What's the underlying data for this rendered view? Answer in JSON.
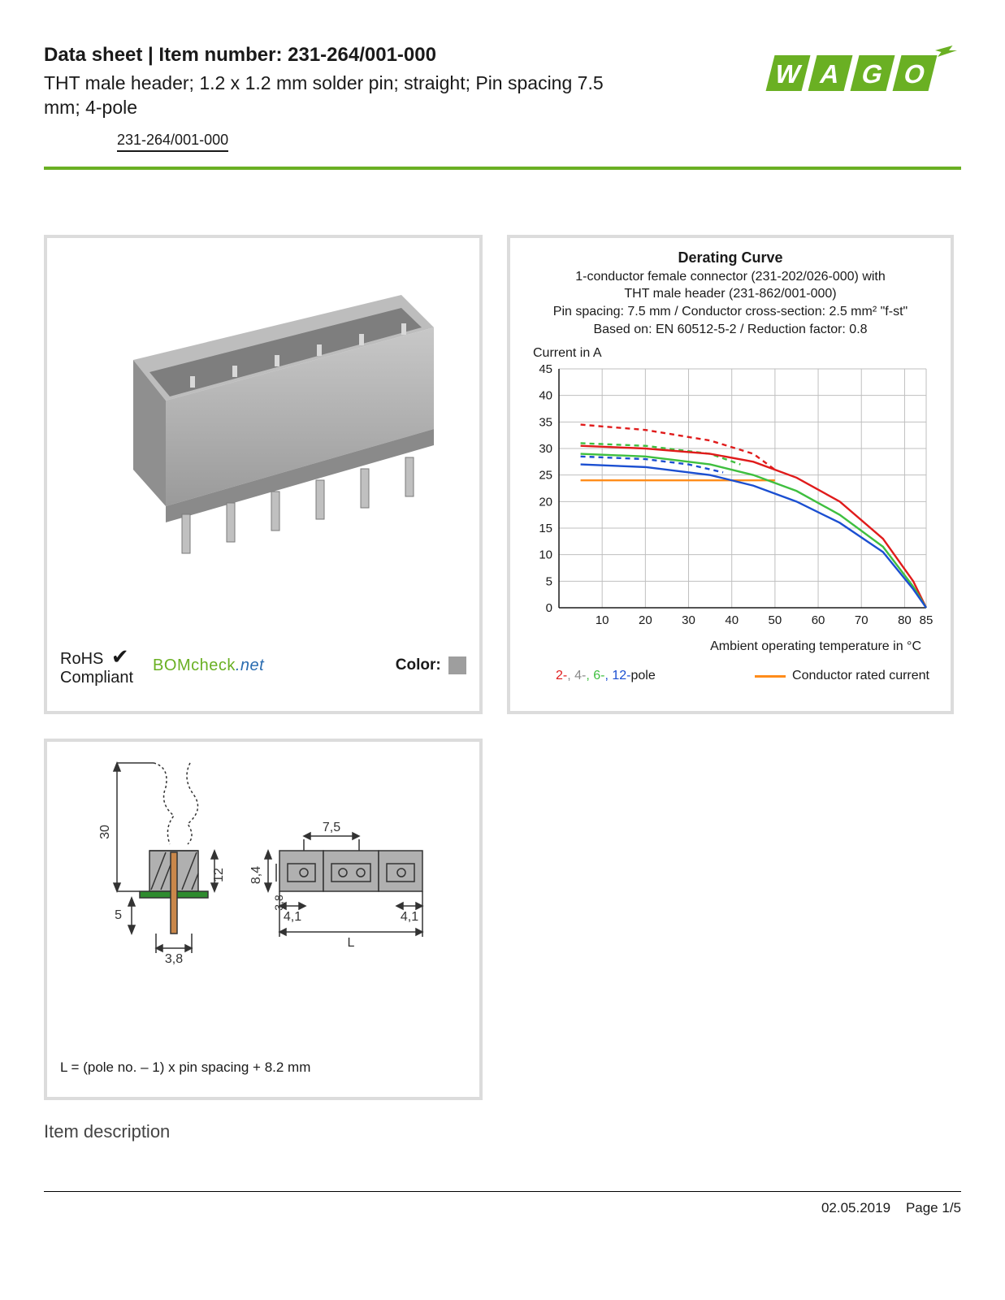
{
  "header": {
    "title_prefix": "Data sheet  |  Item number: ",
    "item_number": "231-264/001-000",
    "subtitle": "THT male header; 1.2 x 1.2 mm solder pin; straight; Pin spacing 7.5 mm; 4-pole",
    "link_text": "231-264/001-000"
  },
  "logo": {
    "brand": "WAGO",
    "fill": "#6ab023",
    "shadow": "#4a7a17"
  },
  "product_panel": {
    "rohs_line1": "RoHS",
    "rohs_line2": "Compliant",
    "bomcheck_text": "BOMcheck",
    "bomcheck_suffix": ".net",
    "color_label": "Color:",
    "swatch_color": "#9e9e9e",
    "connector_body": "#a9a9a9",
    "connector_shadow": "#8a8a8a",
    "pin_color": "#c0c0c0"
  },
  "chart": {
    "title": "Derating Curve",
    "sub1": "1-conductor female connector (231-202/026-000) with",
    "sub2": "THT male header (231-862/001-000)",
    "sub3_html": "Pin spacing: 7.5 mm / Conductor cross-section: 2.5 mm² \"f-st\"",
    "sub4": "Based on: EN 60512-5-2 / Reduction factor: 0.8",
    "y_axis_label": "Current in A",
    "x_axis_label": "Ambient operating temperature in °C",
    "ylim": [
      0,
      45
    ],
    "ytick_step": 5,
    "xlim": [
      0,
      85
    ],
    "xticks": [
      10,
      20,
      30,
      40,
      50,
      60,
      70,
      80,
      85
    ],
    "grid_color": "#bfbfbf",
    "series": {
      "red_solid": {
        "color": "#e01b1b",
        "dash": "none",
        "pts": [
          [
            5,
            30.5
          ],
          [
            20,
            30
          ],
          [
            35,
            29
          ],
          [
            45,
            27.5
          ],
          [
            55,
            24.5
          ],
          [
            65,
            20
          ],
          [
            75,
            13
          ],
          [
            82,
            5
          ],
          [
            85,
            0
          ]
        ]
      },
      "red_dash": {
        "color": "#e01b1b",
        "dash": "6,5",
        "pts": [
          [
            5,
            34.5
          ],
          [
            20,
            33.5
          ],
          [
            35,
            31.5
          ],
          [
            45,
            29
          ],
          [
            50,
            26
          ]
        ]
      },
      "green_solid": {
        "color": "#3fbf3f",
        "dash": "none",
        "pts": [
          [
            5,
            29
          ],
          [
            20,
            28.5
          ],
          [
            35,
            27
          ],
          [
            45,
            25
          ],
          [
            55,
            22
          ],
          [
            65,
            17.5
          ],
          [
            75,
            11.5
          ],
          [
            82,
            4
          ],
          [
            85,
            0
          ]
        ]
      },
      "green_dash": {
        "color": "#3fbf3f",
        "dash": "6,5",
        "pts": [
          [
            5,
            31
          ],
          [
            20,
            30.5
          ],
          [
            35,
            29
          ],
          [
            42,
            27
          ]
        ]
      },
      "blue_solid": {
        "color": "#1b4fd1",
        "dash": "none",
        "pts": [
          [
            5,
            27
          ],
          [
            20,
            26.5
          ],
          [
            35,
            25
          ],
          [
            45,
            23
          ],
          [
            55,
            20
          ],
          [
            65,
            16
          ],
          [
            75,
            10.5
          ],
          [
            82,
            3.5
          ],
          [
            85,
            0
          ]
        ]
      },
      "blue_dash": {
        "color": "#1b4fd1",
        "dash": "6,5",
        "pts": [
          [
            5,
            28.5
          ],
          [
            20,
            28
          ],
          [
            30,
            27
          ],
          [
            38,
            25.5
          ]
        ]
      },
      "orange": {
        "color": "#ff8c1a",
        "dash": "none",
        "pts": [
          [
            5,
            24
          ],
          [
            50,
            24
          ]
        ]
      }
    },
    "legend_poles": [
      {
        "text": "2-",
        "color": "#e01b1b"
      },
      {
        "text": ", 4-",
        "color": "#8a8a8a"
      },
      {
        "text": ", 6-",
        "color": "#3fbf3f"
      },
      {
        "text": ", 12-",
        "color": "#1b4fd1"
      },
      {
        "text": "pole",
        "color": "#1a1a1a"
      }
    ],
    "legend_rated": "Conductor rated current"
  },
  "dimensions_panel": {
    "formula": "L = (pole no. – 1) x pin spacing + 8.2 mm",
    "dims": {
      "h_total": "30",
      "h_body": "12",
      "h_pin": "5",
      "w_pin": "3,8",
      "pitch": "7,5",
      "body_h1": "8,4",
      "body_h2": "3,8",
      "end_w": "4,1",
      "length": "L"
    },
    "line_color": "#333333",
    "body_fill": "#b0b0b0",
    "pcb_color": "#2e8b2e",
    "pin_color": "#c9874a"
  },
  "section_title": "Item description",
  "footer": {
    "date": "02.05.2019",
    "page": "Page 1/5"
  }
}
